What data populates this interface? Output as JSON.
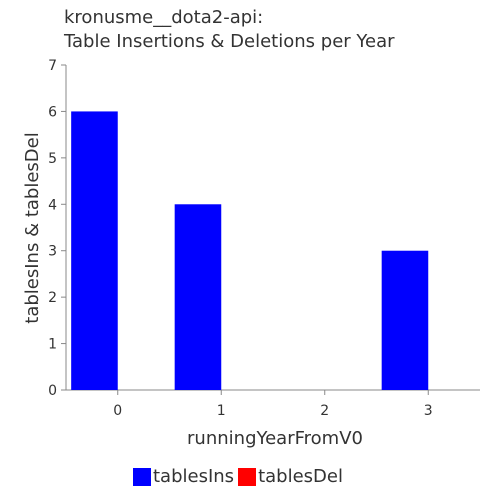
{
  "title_line1": "kronusme__dota2-api:",
  "title_line2": "Table Insertions & Deletions per Year",
  "colors": {
    "tablesIns": "#0000ff",
    "tablesDel": "#ff0000",
    "axis": "#888888",
    "text": "#333333"
  },
  "chart_data": {
    "type": "bar",
    "title": "kronusme__dota2-api: Table Insertions & Deletions per Year",
    "xlabel": "runningYearFromV0",
    "ylabel": "tablesIns & tablesDel",
    "categories": [
      "0",
      "1",
      "2",
      "3"
    ],
    "series": [
      {
        "name": "tablesIns",
        "color": "#0000ff",
        "values": [
          6,
          4,
          0,
          3
        ]
      },
      {
        "name": "tablesDel",
        "color": "#ff0000",
        "values": [
          0,
          0,
          0,
          0
        ]
      }
    ],
    "ylim": [
      0,
      7
    ],
    "yticks": [
      "0",
      "1",
      "2",
      "3",
      "4",
      "5",
      "6",
      "7"
    ],
    "grid": false,
    "legend_position": "bottom"
  }
}
